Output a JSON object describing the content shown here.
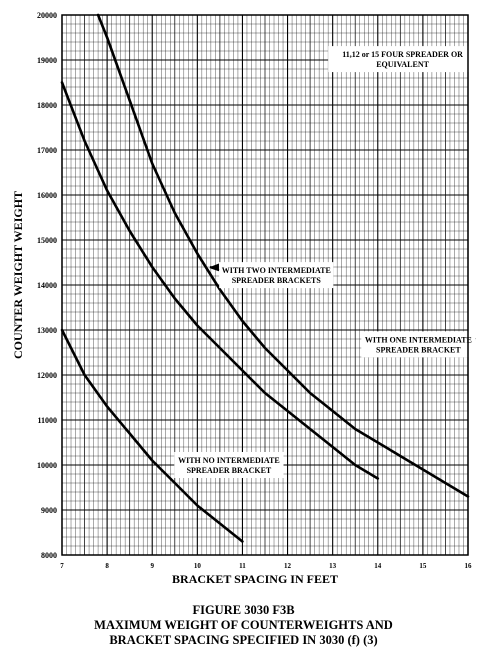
{
  "chart_data": {
    "type": "line",
    "xlabel": "BRACKET SPACING IN FEET",
    "ylabel": "COUNTER WEIGHT WEIGHT",
    "xlim": [
      7,
      16
    ],
    "ylim": [
      8000,
      20000
    ],
    "xticks": [
      "7",
      "8",
      "9",
      "10",
      "11",
      "12",
      "13",
      "14",
      "15",
      "16"
    ],
    "yticks": [
      "8000",
      "9000",
      "10000",
      "11000",
      "12000",
      "13000",
      "14000",
      "15000",
      "16000",
      "17000",
      "18000",
      "19000",
      "20000"
    ],
    "grid": true,
    "series": [
      {
        "name": "11,12 or 15 FOUR SPREADER OR EQUIVALENT",
        "x": [
          7.8,
          8,
          8.5,
          9,
          9.5,
          10,
          10.5,
          11,
          11.5,
          12,
          12.5,
          13,
          13.5,
          14,
          14.5,
          15,
          15.5,
          16
        ],
        "y": [
          20000,
          19500,
          18100,
          16700,
          15600,
          14700,
          13900,
          13200,
          12600,
          12100,
          11600,
          11200,
          10800,
          10500,
          10200,
          9900,
          9600,
          9300
        ]
      },
      {
        "name": "WITH TWO INTERMEDIATE SPREADER BRACKETS",
        "x": [
          7,
          7.5,
          8,
          8.5,
          9,
          9.5,
          10,
          10.5,
          11,
          11.5,
          12,
          12.5,
          13,
          13.5,
          14
        ],
        "y": [
          18500,
          17200,
          16100,
          15200,
          14400,
          13700,
          13100,
          12600,
          12100,
          11600,
          11200,
          10800,
          10400,
          10000,
          9700
        ]
      },
      {
        "name": "WITH ONE INTERMEDIATE SPREADER BRACKET",
        "x": [
          7,
          7.5,
          8,
          8.5,
          9,
          9.5,
          10,
          10.5,
          11
        ],
        "y": [
          13000,
          12000,
          11300,
          10700,
          10100,
          9600,
          9100,
          8700,
          8300
        ]
      },
      {
        "name": "WITH NO INTERMEDIATE SPREADER BRACKET",
        "x": [],
        "y": []
      }
    ],
    "annotations": [
      {
        "line1": "11,12 or 15 FOUR SPREADER OR",
        "line2": "EQUIVALENT",
        "x": 14.55,
        "y": 19020,
        "arrow": false
      },
      {
        "line1": "WITH TWO INTERMEDIATE",
        "line2": "SPREADER BRACKETS",
        "x": 11.75,
        "y": 14220,
        "arrow": true,
        "arrow_x": 10.28,
        "arrow_y": 14400
      },
      {
        "line1": "WITH ONE INTERMEDIATE",
        "line2": "SPREADER BRACKET",
        "x": 14.9,
        "y": 12680,
        "arrow": true,
        "arrow_x": 15.95,
        "arrow_y": 12860
      },
      {
        "line1": "WITH NO INTERMEDIATE",
        "line2": "SPREADER BRACKET",
        "x": 10.7,
        "y": 10000,
        "arrow": false
      }
    ]
  },
  "caption": {
    "line1": "FIGURE 3030 F3B",
    "line2": "MAXIMUM WEIGHT OF COUNTERWEIGHTS AND",
    "line3": "BRACKET SPACING SPECIFIED IN 3030 (f) (3)"
  },
  "colors": {
    "ink": "#000000",
    "paper": "#ffffff",
    "grid": "#000000",
    "label_box": "#ffffff"
  }
}
